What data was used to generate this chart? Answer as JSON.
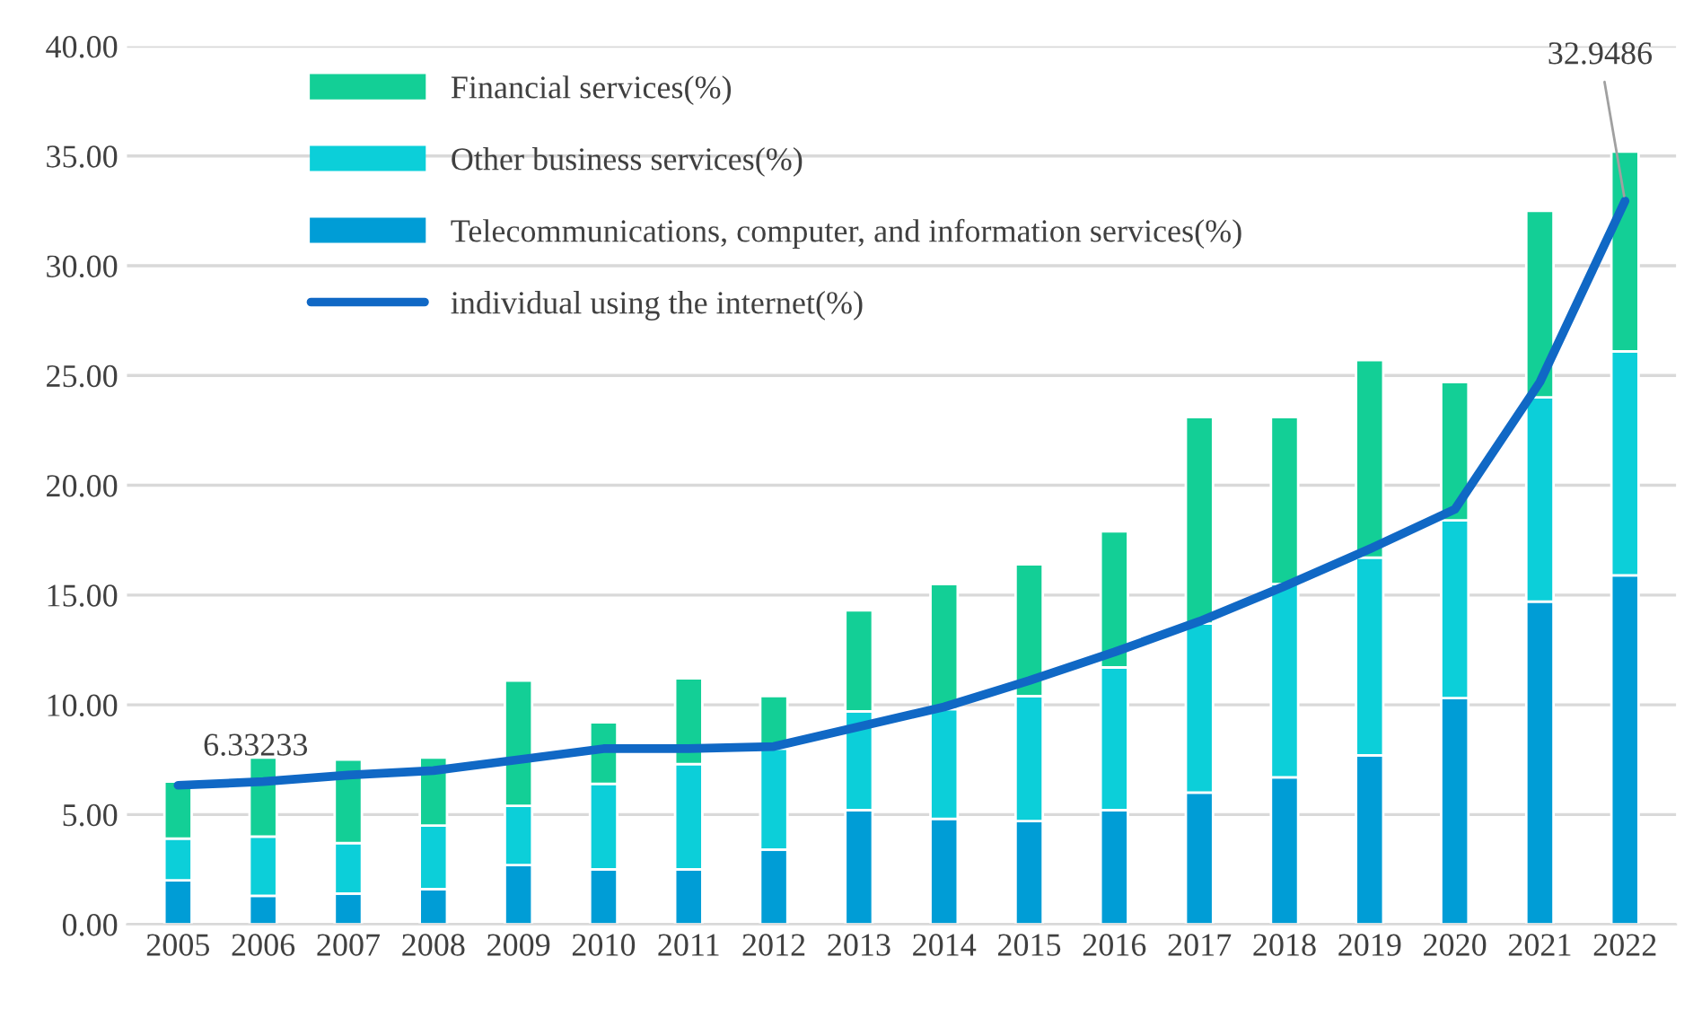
{
  "chart_data": {
    "type": "bar",
    "stacked": true,
    "categories": [
      "2005",
      "2006",
      "2007",
      "2008",
      "2009",
      "2010",
      "2011",
      "2012",
      "2013",
      "2014",
      "2015",
      "2016",
      "2017",
      "2018",
      "2019",
      "2020",
      "2021",
      "2022"
    ],
    "series": [
      {
        "name": "Telecommunications, computer, and information services(%)",
        "color": "#009dd6",
        "values": [
          2.0,
          1.3,
          1.4,
          1.6,
          2.7,
          2.5,
          2.5,
          3.4,
          5.2,
          4.8,
          4.7,
          5.2,
          6.0,
          6.7,
          7.7,
          10.3,
          14.7,
          15.9
        ]
      },
      {
        "name": "Other business services(%)",
        "color": "#0ccfd9",
        "values": [
          1.9,
          2.7,
          2.3,
          2.9,
          2.7,
          3.9,
          4.8,
          4.6,
          4.5,
          5.0,
          5.7,
          6.5,
          7.7,
          8.8,
          9.0,
          8.1,
          9.3,
          10.2
        ]
      },
      {
        "name": "Financial services(%)",
        "color": "#13cf96",
        "values": [
          2.6,
          3.6,
          3.8,
          3.1,
          5.7,
          2.8,
          3.9,
          2.4,
          4.6,
          5.7,
          6.0,
          6.2,
          9.4,
          7.6,
          9.0,
          6.3,
          8.5,
          9.1
        ]
      },
      {
        "name": "individual using the internet(%)",
        "type": "line",
        "color": "#1068c5",
        "values": [
          6.33233,
          6.5,
          6.8,
          7.0,
          7.5,
          8.0,
          8.0,
          8.1,
          9.0,
          9.9,
          11.1,
          12.4,
          13.8,
          15.4,
          17.1,
          18.9,
          24.7,
          32.9486
        ],
        "value_labels": [
          "6.33233",
          null,
          null,
          null,
          null,
          null,
          null,
          null,
          null,
          null,
          null,
          null,
          null,
          null,
          null,
          null,
          null,
          "32.9486"
        ]
      }
    ],
    "ylim": [
      0,
      40
    ],
    "yticks": [
      {
        "value": 0,
        "label": "0.00"
      },
      {
        "value": 5,
        "label": "5.00"
      },
      {
        "value": 10,
        "label": "10.00"
      },
      {
        "value": 15,
        "label": "15.00"
      },
      {
        "value": 20,
        "label": "20.00"
      },
      {
        "value": 25,
        "label": "25.00"
      },
      {
        "value": 30,
        "label": "30.00"
      },
      {
        "value": 35,
        "label": "35.00"
      },
      {
        "value": 40,
        "label": "40.00"
      }
    ],
    "grid": "y",
    "legend": "top left"
  }
}
